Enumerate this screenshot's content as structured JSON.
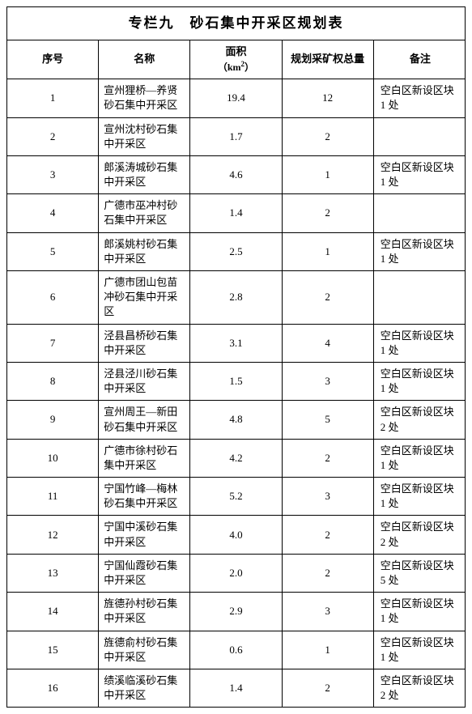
{
  "title": "专栏九　砂石集中开采区规划表",
  "headers": {
    "idx": "序号",
    "name": "名称",
    "area_l1": "面积",
    "area_l2_prefix": "（km",
    "area_l2_suffix": "）",
    "rights": "规划采矿权总量",
    "note": "备注"
  },
  "columns": {
    "idx_width": 30,
    "name_width": 215,
    "area_width": 68,
    "rights_width": 68
  },
  "colors": {
    "border": "#000000",
    "background": "#ffffff",
    "text": "#000000"
  },
  "rows": [
    {
      "idx": "1",
      "name": "宣州狸桥—养贤砂石集中开采区",
      "area": "19.4",
      "rights": "12",
      "note": "空白区新设区块 1 处"
    },
    {
      "idx": "2",
      "name": "宣州沈村砂石集中开采区",
      "area": "1.7",
      "rights": "2",
      "note": ""
    },
    {
      "idx": "3",
      "name": "郎溪涛城砂石集中开采区",
      "area": "4.6",
      "rights": "1",
      "note": "空白区新设区块 1 处"
    },
    {
      "idx": "4",
      "name": "广德市巫冲村砂石集中开采区",
      "area": "1.4",
      "rights": "2",
      "note": ""
    },
    {
      "idx": "5",
      "name": "郎溪姚村砂石集中开采区",
      "area": "2.5",
      "rights": "1",
      "note": "空白区新设区块 1 处"
    },
    {
      "idx": "6",
      "name": "广德市团山包苗冲砂石集中开采区",
      "area": "2.8",
      "rights": "2",
      "note": ""
    },
    {
      "idx": "7",
      "name": "泾县昌桥砂石集中开采区",
      "area": "3.1",
      "rights": "4",
      "note": "空白区新设区块 1 处"
    },
    {
      "idx": "8",
      "name": "泾县泾川砂石集中开采区",
      "area": "1.5",
      "rights": "3",
      "note": "空白区新设区块 1 处"
    },
    {
      "idx": "9",
      "name": "宣州周王—新田砂石集中开采区",
      "area": "4.8",
      "rights": "5",
      "note": "空白区新设区块 2 处"
    },
    {
      "idx": "10",
      "name": "广德市徐村砂石集中开采区",
      "area": "4.2",
      "rights": "2",
      "note": "空白区新设区块 1 处"
    },
    {
      "idx": "11",
      "name": "宁国竹峰—梅林砂石集中开采区",
      "area": "5.2",
      "rights": "3",
      "note": "空白区新设区块 1 处"
    },
    {
      "idx": "12",
      "name": "宁国中溪砂石集中开采区",
      "area": "4.0",
      "rights": "2",
      "note": "空白区新设区块 2 处"
    },
    {
      "idx": "13",
      "name": "宁国仙霞砂石集中开采区",
      "area": "2.0",
      "rights": "2",
      "note": "空白区新设区块 5 处"
    },
    {
      "idx": "14",
      "name": "旌德孙村砂石集中开采区",
      "area": "2.9",
      "rights": "3",
      "note": "空白区新设区块 1 处"
    },
    {
      "idx": "15",
      "name": "旌德俞村砂石集中开采区",
      "area": "0.6",
      "rights": "1",
      "note": "空白区新设区块 1 处"
    },
    {
      "idx": "16",
      "name": "绩溪临溪砂石集中开采区",
      "area": "1.4",
      "rights": "2",
      "note": "空白区新设区块 2 处"
    }
  ]
}
